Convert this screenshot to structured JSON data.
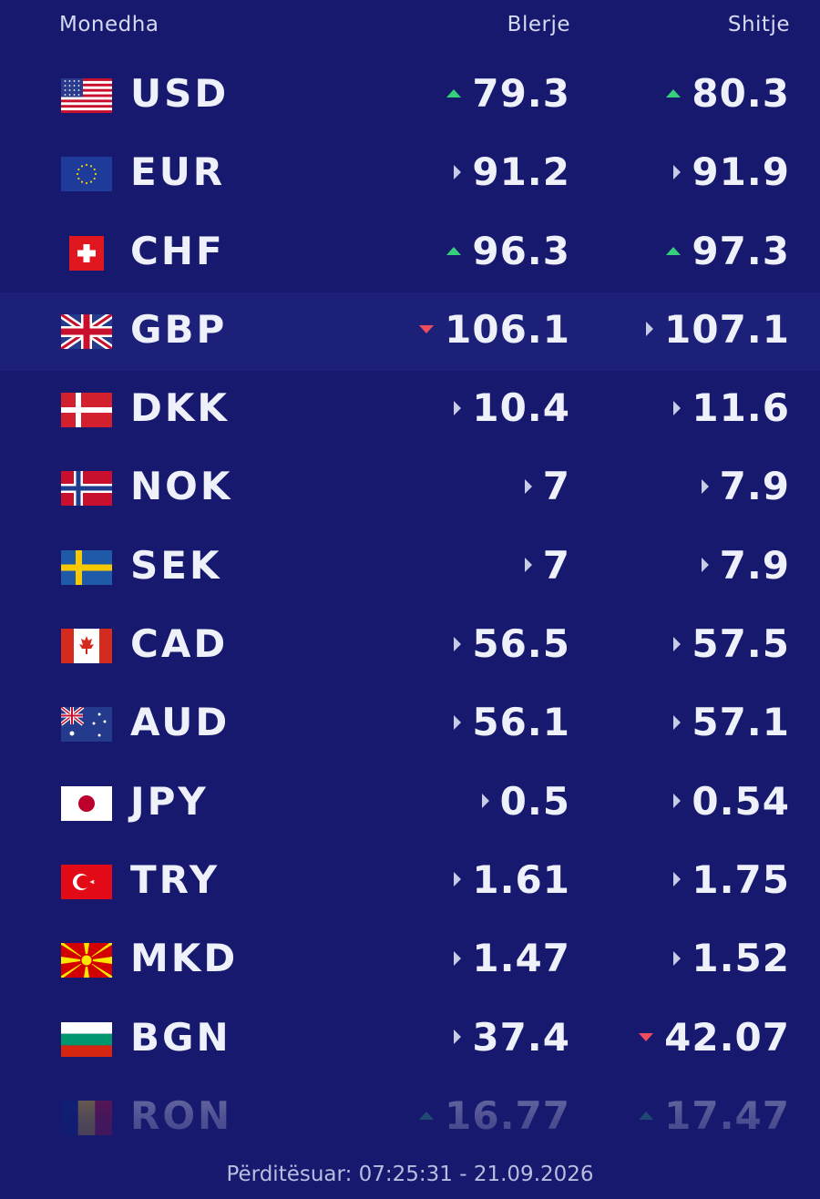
{
  "colors": {
    "background": "#17196e",
    "text": "#eef0fa",
    "up": "#35d07a",
    "down": "#ef4d5d",
    "flat": "#c7cbe6"
  },
  "header": {
    "currency": "Monedha",
    "buy": "Blerje",
    "sell": "Shitje"
  },
  "rows": [
    {
      "code": "USD",
      "flag": "us-flag-icon",
      "buy": "79.3",
      "buy_trend": "up",
      "sell": "80.3",
      "sell_trend": "up"
    },
    {
      "code": "EUR",
      "flag": "eu-flag-icon",
      "buy": "91.2",
      "buy_trend": "flat",
      "sell": "91.9",
      "sell_trend": "flat"
    },
    {
      "code": "CHF",
      "flag": "ch-flag-icon",
      "buy": "96.3",
      "buy_trend": "up",
      "sell": "97.3",
      "sell_trend": "up"
    },
    {
      "code": "GBP",
      "flag": "gb-flag-icon",
      "buy": "106.1",
      "buy_trend": "down",
      "sell": "107.1",
      "sell_trend": "flat"
    },
    {
      "code": "DKK",
      "flag": "dk-flag-icon",
      "buy": "10.4",
      "buy_trend": "flat",
      "sell": "11.6",
      "sell_trend": "flat"
    },
    {
      "code": "NOK",
      "flag": "no-flag-icon",
      "buy": "7",
      "buy_trend": "flat",
      "sell": "7.9",
      "sell_trend": "flat"
    },
    {
      "code": "SEK",
      "flag": "se-flag-icon",
      "buy": "7",
      "buy_trend": "flat",
      "sell": "7.9",
      "sell_trend": "flat"
    },
    {
      "code": "CAD",
      "flag": "ca-flag-icon",
      "buy": "56.5",
      "buy_trend": "flat",
      "sell": "57.5",
      "sell_trend": "flat"
    },
    {
      "code": "AUD",
      "flag": "au-flag-icon",
      "buy": "56.1",
      "buy_trend": "flat",
      "sell": "57.1",
      "sell_trend": "flat"
    },
    {
      "code": "JPY",
      "flag": "jp-flag-icon",
      "buy": "0.5",
      "buy_trend": "flat",
      "sell": "0.54",
      "sell_trend": "flat"
    },
    {
      "code": "TRY",
      "flag": "tr-flag-icon",
      "buy": "1.61",
      "buy_trend": "flat",
      "sell": "1.75",
      "sell_trend": "flat"
    },
    {
      "code": "MKD",
      "flag": "mk-flag-icon",
      "buy": "1.47",
      "buy_trend": "flat",
      "sell": "1.52",
      "sell_trend": "flat"
    },
    {
      "code": "BGN",
      "flag": "bg-flag-icon",
      "buy": "37.4",
      "buy_trend": "flat",
      "sell": "42.07",
      "sell_trend": "down"
    },
    {
      "code": "RON",
      "flag": "ro-flag-icon",
      "buy": "16.77",
      "buy_trend": "up",
      "sell": "17.47",
      "sell_trend": "up"
    }
  ],
  "footer": {
    "updated": "Përditësuar: 07:25:31 - 21.09.2026"
  }
}
